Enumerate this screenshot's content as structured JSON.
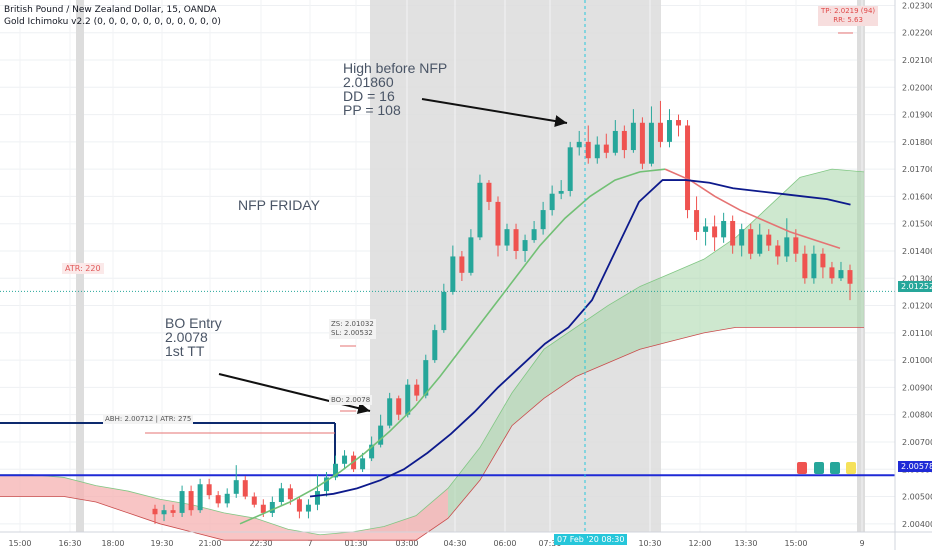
{
  "header": {
    "symbol": "British Pound / New Zealand Dollar, 15, OANDA",
    "indicator": "Gold Ichimoku v2.2 (0, 0, 0, 0, 0, 0, 0, 0, 0, 0, 0)"
  },
  "annotations": {
    "nfp_friday": "NFP FRIDAY",
    "high_before_nfp": "High before NFP\n2.01860\nDD = 16\nPP = 108",
    "bo_entry": "BO Entry\n2.0078\n1st TT",
    "atr": "ATR: 220",
    "abh": "ABH: 2.00712 | ATR: 275",
    "zs_sl": "ZS: 2.01032\nSL: 2.00532",
    "bo": "BO: 2.0078",
    "tp_rr": "TP: 2.0219 (94)\nRR: 5.63"
  },
  "axis_tags": {
    "last_price": "2.01252",
    "blue_line": "2.00578",
    "time_highlight": "07 Feb '20   08:30"
  },
  "colors": {
    "up": "#26a69a",
    "down": "#ef5350",
    "kijun": "#0d1a8c",
    "tenkan_green": "#72c075",
    "tenkan_red": "#e57373",
    "cloud_green": "#a5d6a7",
    "cloud_red": "#f6b1b1",
    "hline_blue": "#1f2ad6",
    "hline_navy": "#0d2a6e",
    "cursor": "#26c6da"
  },
  "chart_data": {
    "type": "candlestick",
    "ylim": [
      2.0037,
      2.0232
    ],
    "y_ticks": [
      "2.02300",
      "2.02200",
      "2.02100",
      "2.02000",
      "2.01900",
      "2.01800",
      "2.01700",
      "2.01600",
      "2.01500",
      "2.01400",
      "2.01300",
      "2.01200",
      "2.01100",
      "2.01000",
      "2.00900",
      "2.00800",
      "2.00700",
      "2.00600",
      "2.00500",
      "2.00400"
    ],
    "x_ticks": [
      "15:00",
      "16:30",
      "18:00",
      "19:30",
      "21:00",
      "22:30",
      "7",
      "01:30",
      "03:00",
      "04:30",
      "06:00",
      "07:30",
      "10:30",
      "12:00",
      "13:30",
      "15:00",
      "9"
    ],
    "candles": [
      [
        2.00455,
        2.00435,
        2.0047,
        2.004
      ],
      [
        2.00435,
        2.0045,
        2.0047,
        2.0041
      ],
      [
        2.0045,
        2.0044,
        2.0047,
        2.00425
      ],
      [
        2.0044,
        2.0052,
        2.0054,
        2.00425
      ],
      [
        2.0052,
        2.0045,
        2.0054,
        2.0043
      ],
      [
        2.0045,
        2.00545,
        2.00565,
        2.0044
      ],
      [
        2.00545,
        2.00505,
        2.00565,
        2.0049
      ],
      [
        2.00505,
        2.00475,
        2.0052,
        2.0046
      ],
      [
        2.00475,
        2.0051,
        2.0053,
        2.0046
      ],
      [
        2.0051,
        2.0056,
        2.00615,
        2.00495
      ],
      [
        2.0056,
        2.005,
        2.00575,
        2.0049
      ],
      [
        2.005,
        2.0047,
        2.00515,
        2.0046
      ],
      [
        2.0047,
        2.0044,
        2.0049,
        2.00425
      ],
      [
        2.0044,
        2.0048,
        2.005,
        2.00425
      ],
      [
        2.0048,
        2.0053,
        2.0055,
        2.00465
      ],
      [
        2.0053,
        2.0049,
        2.00545,
        2.0047
      ],
      [
        2.0049,
        2.00445,
        2.005,
        2.0042
      ],
      [
        2.00445,
        2.0047,
        2.0049,
        2.0042
      ],
      [
        2.0047,
        2.0052,
        2.0058,
        2.0045
      ],
      [
        2.0052,
        2.0057,
        2.0059,
        2.005
      ],
      [
        2.0057,
        2.0062,
        2.0065,
        2.0056
      ],
      [
        2.0062,
        2.0065,
        2.0067,
        2.006
      ],
      [
        2.0065,
        2.006,
        2.00665,
        2.0059
      ],
      [
        2.006,
        2.0064,
        2.0066,
        2.0059
      ],
      [
        2.0064,
        2.0069,
        2.0072,
        2.0063
      ],
      [
        2.0069,
        2.0076,
        2.008,
        2.0068
      ],
      [
        2.0076,
        2.0086,
        2.0088,
        2.0075
      ],
      [
        2.0086,
        2.008,
        2.0087,
        2.0078
      ],
      [
        2.008,
        2.0091,
        2.0093,
        2.0079
      ],
      [
        2.0091,
        2.0087,
        2.0093,
        2.0085
      ],
      [
        2.0087,
        2.01,
        2.0102,
        2.0086
      ],
      [
        2.01,
        2.0111,
        2.0113,
        2.0099
      ],
      [
        2.0111,
        2.0125,
        2.0128,
        2.011
      ],
      [
        2.0125,
        2.0138,
        2.0142,
        2.0124
      ],
      [
        2.0138,
        2.0132,
        2.014,
        2.0129
      ],
      [
        2.0132,
        2.0145,
        2.0148,
        2.0131
      ],
      [
        2.0145,
        2.0165,
        2.0168,
        2.0144
      ],
      [
        2.0165,
        2.0158,
        2.0166,
        2.0155
      ],
      [
        2.0158,
        2.0142,
        2.016,
        2.0138
      ],
      [
        2.0142,
        2.0148,
        2.015,
        2.014
      ],
      [
        2.0148,
        2.014,
        2.015,
        2.0137
      ],
      [
        2.014,
        2.0144,
        2.0146,
        2.0136
      ],
      [
        2.0144,
        2.0148,
        2.0151,
        2.0143
      ],
      [
        2.0148,
        2.0155,
        2.0158,
        2.0146
      ],
      [
        2.0155,
        2.0161,
        2.0164,
        2.0153
      ],
      [
        2.0161,
        2.0162,
        2.0166,
        2.0159
      ],
      [
        2.0162,
        2.0178,
        2.018,
        2.016
      ],
      [
        2.0178,
        2.018,
        2.0184,
        2.0175
      ],
      [
        2.018,
        2.0174,
        2.0186,
        2.0172
      ],
      [
        2.0174,
        2.0179,
        2.0182,
        2.0172
      ],
      [
        2.0179,
        2.0176,
        2.0183,
        2.0174
      ],
      [
        2.0176,
        2.0184,
        2.0188,
        2.0175
      ],
      [
        2.0184,
        2.0177,
        2.0186,
        2.0174
      ],
      [
        2.0177,
        2.0187,
        2.0192,
        2.0176
      ],
      [
        2.0187,
        2.0172,
        2.0189,
        2.017
      ],
      [
        2.0172,
        2.0187,
        2.0193,
        2.0171
      ],
      [
        2.0187,
        2.018,
        2.0195,
        2.0178
      ],
      [
        2.018,
        2.0188,
        2.0192,
        2.0178
      ],
      [
        2.0188,
        2.0186,
        2.019,
        2.0182
      ],
      [
        2.0186,
        2.0155,
        2.0188,
        2.0152
      ],
      [
        2.0155,
        2.0147,
        2.016,
        2.0144
      ],
      [
        2.0147,
        2.0149,
        2.0152,
        2.0142
      ],
      [
        2.0149,
        2.0145,
        2.0153,
        2.014
      ],
      [
        2.0145,
        2.0151,
        2.0154,
        2.0143
      ],
      [
        2.0151,
        2.0142,
        2.0153,
        2.0139
      ],
      [
        2.0142,
        2.0148,
        2.015,
        2.0138
      ],
      [
        2.0148,
        2.0139,
        2.015,
        2.0137
      ],
      [
        2.0139,
        2.0146,
        2.015,
        2.0138
      ],
      [
        2.0146,
        2.0142,
        2.0148,
        2.014
      ],
      [
        2.0142,
        2.0138,
        2.0144,
        2.0135
      ],
      [
        2.0138,
        2.0145,
        2.0152,
        2.0136
      ],
      [
        2.0145,
        2.0139,
        2.0148,
        2.0136
      ],
      [
        2.0139,
        2.013,
        2.0142,
        2.0128
      ],
      [
        2.013,
        2.0139,
        2.0142,
        2.0128
      ],
      [
        2.0139,
        2.0134,
        2.0141,
        2.013
      ],
      [
        2.0134,
        2.013,
        2.0136,
        2.0128
      ],
      [
        2.013,
        2.0133,
        2.0136,
        2.0129
      ],
      [
        2.0133,
        2.0128,
        2.0135,
        2.0122
      ]
    ],
    "series": [
      {
        "name": "",
        "role": "tenkan",
        "values": [
          2.004,
          2.0044,
          2.0048,
          2.0053,
          2.0059,
          2.0066,
          2.0074,
          2.0083,
          2.0094,
          2.0106,
          2.0118,
          2.013,
          2.0142,
          2.0152,
          2.016,
          2.0166,
          2.0169,
          2.017,
          2.0166,
          2.016,
          2.0155,
          2.0151,
          2.0147,
          2.0144,
          2.0141
        ]
      },
      {
        "name": "",
        "role": "kijun",
        "values": [
          2.005,
          2.0051,
          2.0053,
          2.0056,
          2.006,
          2.0066,
          2.0073,
          2.0081,
          2.009,
          2.0098,
          2.0106,
          2.0112,
          2.0122,
          2.014,
          2.0158,
          2.0166,
          2.0166,
          2.0165,
          2.0163,
          2.0162,
          2.0161,
          2.016,
          2.0159,
          2.0157
        ]
      },
      {
        "name": "",
        "role": "senkou_a",
        "values": [
          2.0058,
          2.0058,
          2.0057,
          2.0054,
          2.0052,
          2.0049,
          2.0047,
          2.0044,
          2.0042,
          2.0038,
          2.0036,
          2.0037,
          2.0039,
          2.0043,
          2.0053,
          2.0068,
          2.0088,
          2.0104,
          2.0112,
          2.012,
          2.0127,
          2.0132,
          2.0137,
          2.0145,
          2.0156,
          2.0167,
          2.017,
          2.0169
        ]
      },
      {
        "name": "",
        "role": "senkou_b",
        "values": [
          2.005,
          2.005,
          2.005,
          2.0048,
          2.0044,
          2.004,
          2.0037,
          2.0034,
          2.0034,
          2.0034,
          2.0034,
          2.0034,
          2.0034,
          2.0034,
          2.0042,
          2.0056,
          2.0076,
          2.0086,
          2.0094,
          2.0099,
          2.0104,
          2.0107,
          2.011,
          2.0112,
          2.0112,
          2.0112,
          2.0112,
          2.0112
        ]
      }
    ]
  }
}
